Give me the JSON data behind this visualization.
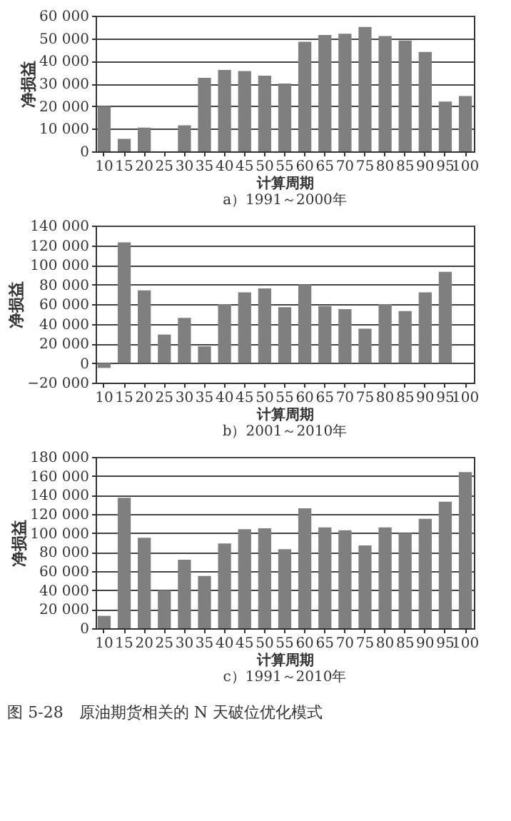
{
  "chart_data": [
    {
      "type": "bar",
      "title": "a）1991～2000年",
      "xlabel": "计算周期",
      "ylabel": "净损益",
      "categories": [
        "10",
        "15",
        "20",
        "25",
        "30",
        "35",
        "40",
        "45",
        "50",
        "55",
        "60",
        "65",
        "70",
        "75",
        "80",
        "85",
        "90",
        "95",
        "100"
      ],
      "values": [
        20000,
        5500,
        10500,
        null,
        11500,
        32500,
        36000,
        35500,
        33500,
        30000,
        48500,
        51500,
        52000,
        55000,
        51000,
        49000,
        44000,
        22000,
        24500
      ],
      "color": "#7f7f7f",
      "ylim": [
        0,
        60000
      ],
      "yticks": [
        0,
        {
          "value": 10000,
          "label": "10 000"
        },
        {
          "value": 20000,
          "label": "20 000"
        },
        {
          "value": 30000,
          "label": "30 000"
        },
        {
          "value": 40000,
          "label": "40 000"
        },
        {
          "value": 50000,
          "label": "50 000"
        },
        {
          "value": 60000,
          "label": "60 000"
        }
      ],
      "grid": "y"
    },
    {
      "type": "bar",
      "title": "b）2001～2010年",
      "xlabel": "计算周期",
      "ylabel": "净损益",
      "categories": [
        "10",
        "15",
        "20",
        "25",
        "30",
        "35",
        "40",
        "45",
        "50",
        "55",
        "60",
        "65",
        "70",
        "75",
        "80",
        "85",
        "90",
        "95",
        "100"
      ],
      "values": [
        -5000,
        123000,
        74000,
        29000,
        46000,
        17000,
        60000,
        72000,
        76000,
        57000,
        80000,
        58000,
        55000,
        35000,
        60000,
        53000,
        72000,
        93000,
        null
      ],
      "color": "#7f7f7f",
      "ylim": [
        -20000,
        140000
      ],
      "yticks": [
        {
          "value": -20000,
          "label": "−20 000"
        },
        0,
        {
          "value": 20000,
          "label": "20 000"
        },
        {
          "value": 40000,
          "label": "40 000"
        },
        {
          "value": 60000,
          "label": "60 000"
        },
        {
          "value": 80000,
          "label": "80 000"
        },
        {
          "value": 100000,
          "label": "100 000"
        },
        {
          "value": 120000,
          "label": "120 000"
        },
        {
          "value": 140000,
          "label": "140 000"
        }
      ],
      "grid": "y"
    },
    {
      "type": "bar",
      "title": "c）1991～2010年",
      "xlabel": "计算周期",
      "ylabel": "净损益",
      "categories": [
        "10",
        "15",
        "20",
        "25",
        "30",
        "35",
        "40",
        "45",
        "50",
        "55",
        "60",
        "65",
        "70",
        "75",
        "80",
        "85",
        "90",
        "95",
        "100"
      ],
      "values": [
        13000,
        137000,
        95000,
        40000,
        72000,
        55000,
        89000,
        104000,
        105000,
        83000,
        126000,
        106000,
        103000,
        87000,
        106000,
        100000,
        115000,
        133000,
        164000
      ],
      "color": "#7f7f7f",
      "ylim": [
        0,
        180000
      ],
      "yticks": [
        0,
        {
          "value": 20000,
          "label": "20 000"
        },
        {
          "value": 40000,
          "label": "40 000"
        },
        {
          "value": 60000,
          "label": "60 000"
        },
        {
          "value": 80000,
          "label": "80 000"
        },
        {
          "value": 100000,
          "label": "100 000"
        },
        {
          "value": 120000,
          "label": "120 000"
        },
        {
          "value": 140000,
          "label": "140 000"
        },
        {
          "value": 160000,
          "label": "160 000"
        },
        {
          "value": 180000,
          "label": "180 000"
        }
      ],
      "grid": "y",
      "annotations": [
        "图 5-28　原油期货相关的 N 天破位优化模式"
      ]
    }
  ]
}
